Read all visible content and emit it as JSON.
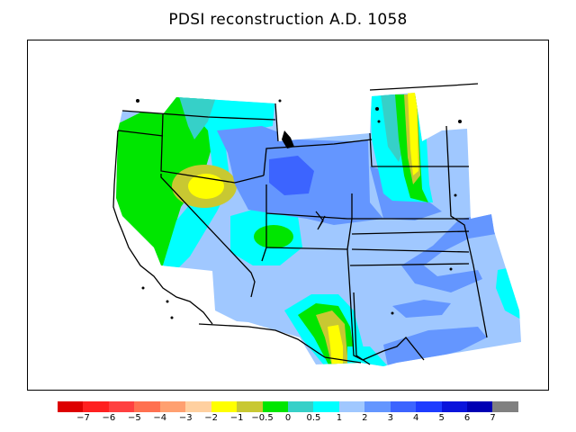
{
  "title": "PDSI reconstruction A.D. 1058",
  "legend": {
    "colors": [
      "#dd0000",
      "#ff2020",
      "#ff4040",
      "#ff7050",
      "#ffa070",
      "#ffd0a0",
      "#ffff00",
      "#c8c832",
      "#00e600",
      "#36d0c8",
      "#00ffff",
      "#a0c8ff",
      "#6496ff",
      "#3c64ff",
      "#1e3cff",
      "#0a14dc",
      "#0000b4",
      "#808080"
    ],
    "ticks": [
      "−7",
      "−6",
      "−5",
      "−4",
      "−3",
      "−2",
      "−1",
      "−0.5",
      "0",
      "0.5",
      "1",
      "2",
      "3",
      "4",
      "5",
      "6",
      "7"
    ]
  },
  "map": {
    "palette": {
      "base": "#a0c8ff",
      "medium_blue": "#6496ff",
      "dark_blue": "#3c64ff",
      "cyan": "#00ffff",
      "teal": "#36d0c8",
      "green": "#00e600",
      "olive": "#c8c832",
      "yellow": "#ffff00",
      "outline": "#000000"
    },
    "regions": [
      "state-boundaries",
      "coastline",
      "international-border",
      "islands",
      "lakes"
    ]
  }
}
